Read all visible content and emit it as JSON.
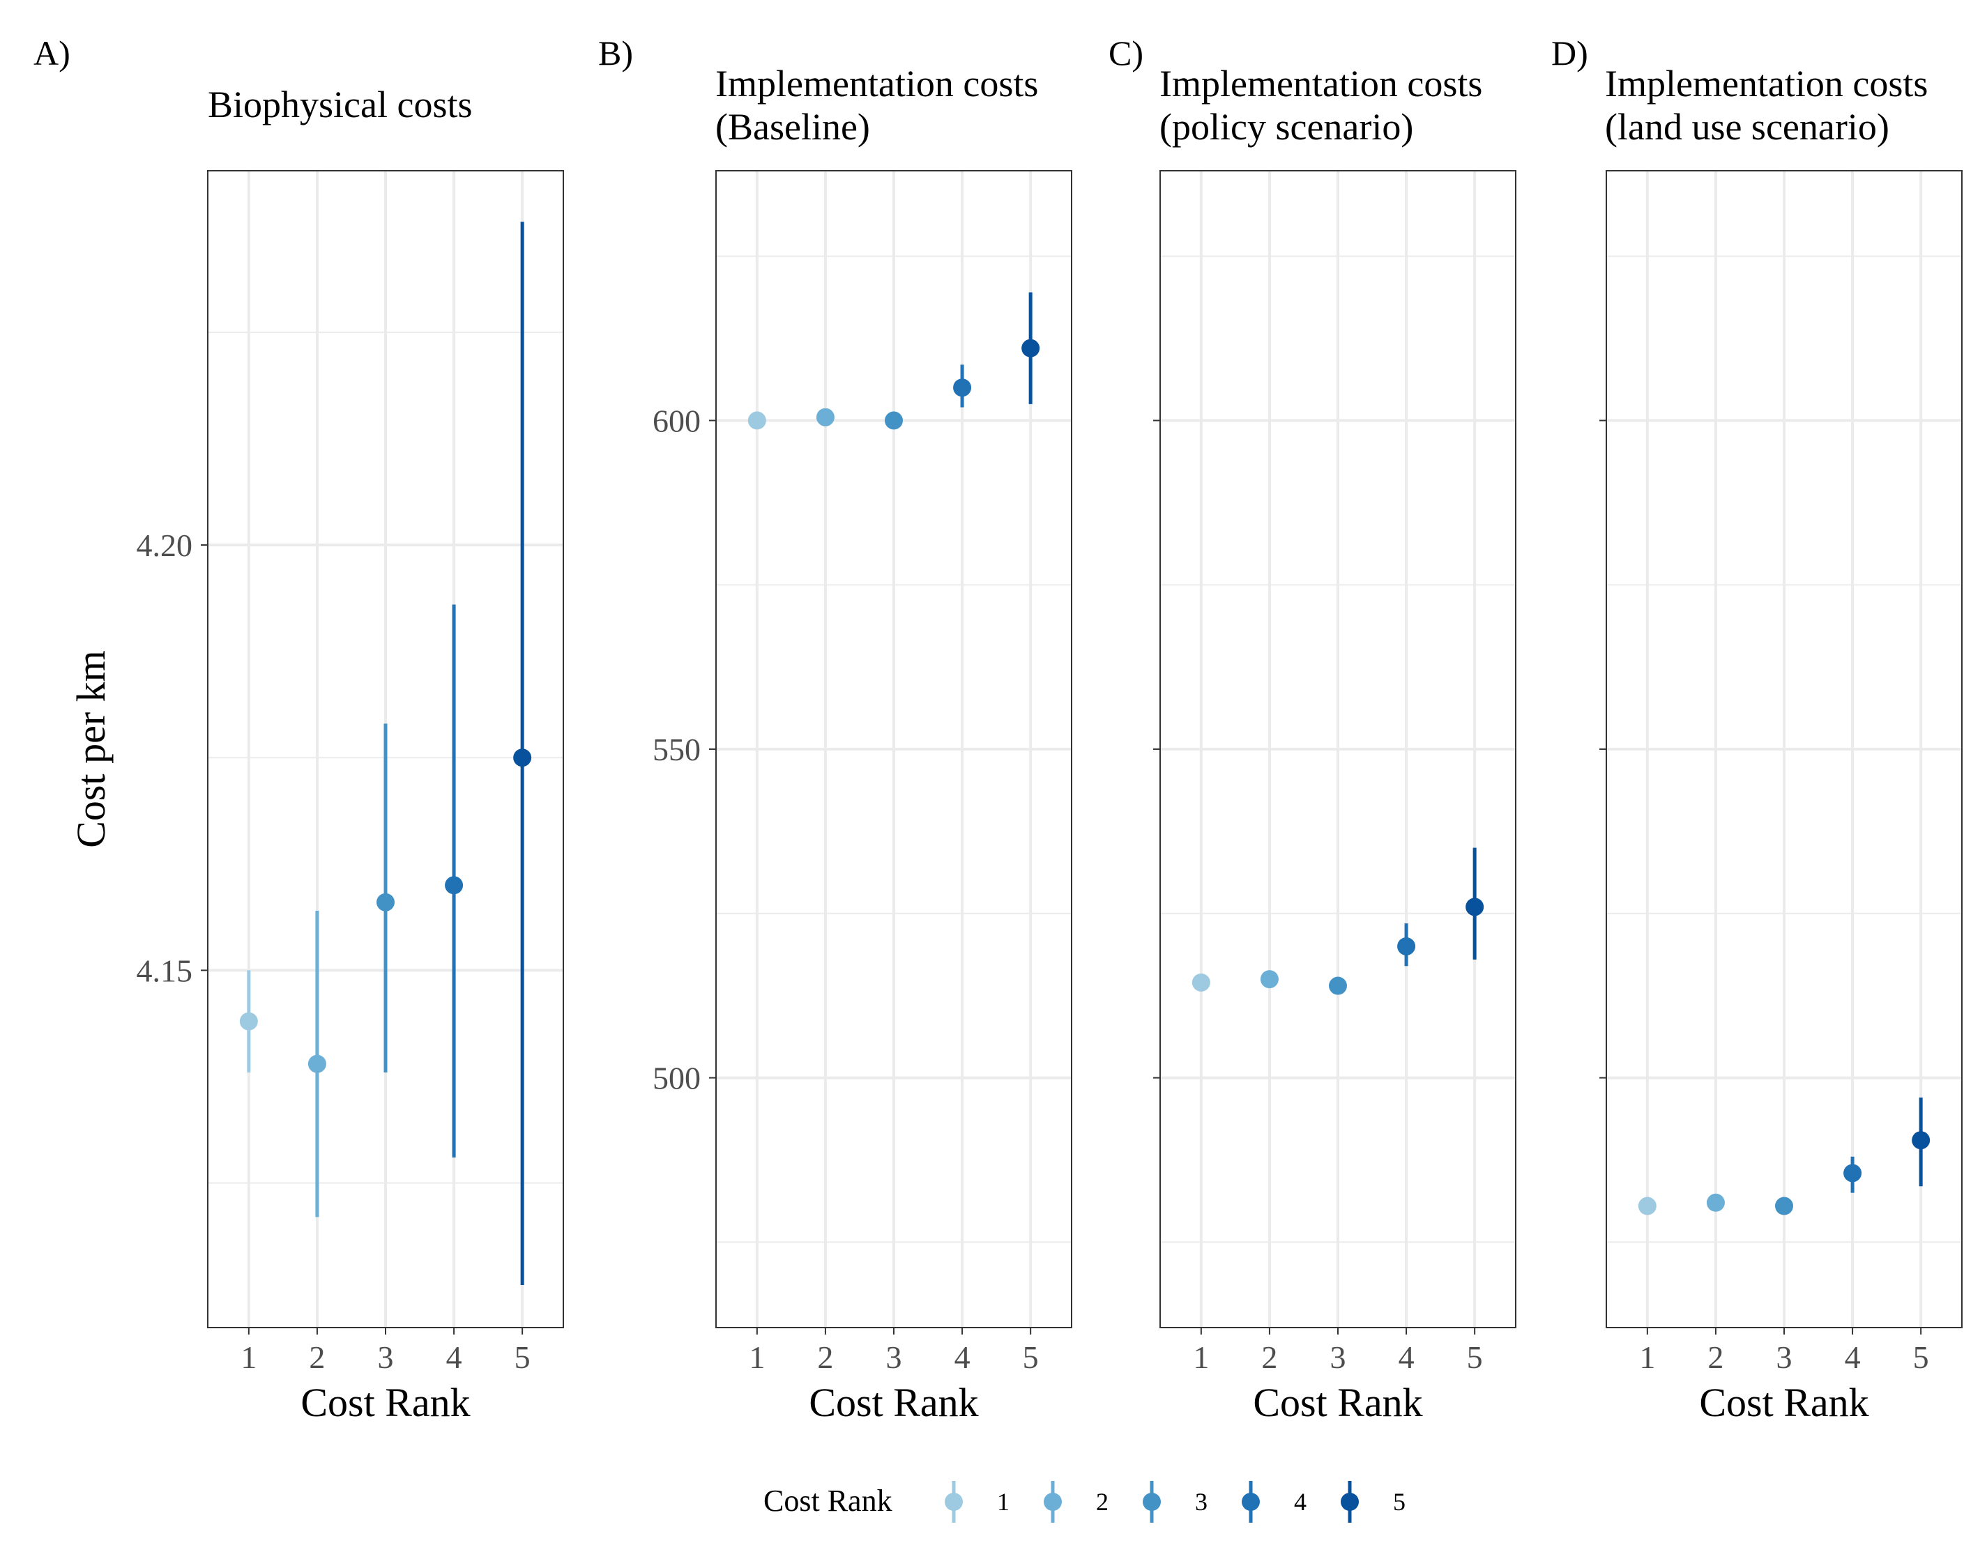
{
  "figure": {
    "ylabel": "Cost per km",
    "colors": {
      "rank_1": "#9ecae1",
      "rank_2": "#6baed6",
      "rank_3": "#4292c6",
      "rank_4": "#2171b5",
      "rank_5": "#08519c",
      "grid": "#ebebeb",
      "frame": "#333333"
    },
    "legend": {
      "title": "Cost Rank",
      "position": "bottom",
      "labels": [
        "1",
        "2",
        "3",
        "4",
        "5"
      ]
    }
  },
  "chart_data": [
    {
      "type": "scatter",
      "panel_label": "A)",
      "title": [
        "Biophysical costs"
      ],
      "xlabel": "Cost Rank",
      "categories": [
        "1",
        "2",
        "3",
        "4",
        "5"
      ],
      "values": [
        4.144,
        4.139,
        4.158,
        4.16,
        4.175
      ],
      "lower": [
        4.138,
        4.121,
        4.138,
        4.128,
        4.113
      ],
      "upper": [
        4.15,
        4.157,
        4.179,
        4.193,
        4.238
      ],
      "ylim": [
        4.108,
        4.244
      ],
      "yticks": [
        4.15,
        4.2
      ],
      "ytick_labels": [
        "4.15",
        "4.20"
      ],
      "grid": true
    },
    {
      "type": "scatter",
      "panel_label": "B)",
      "title": [
        "Implementation costs",
        " (Baseline)"
      ],
      "xlabel": "Cost Rank",
      "categories": [
        "1",
        "2",
        "3",
        "4",
        "5"
      ],
      "values": [
        600.0,
        600.5,
        600.0,
        605.0,
        611.0
      ],
      "lower": [
        600.0,
        600.5,
        600.0,
        602.0,
        602.5
      ],
      "upper": [
        600.0,
        600.5,
        600.0,
        608.5,
        619.5
      ],
      "ylim": [
        462,
        638
      ],
      "yticks": [
        500,
        550,
        600
      ],
      "ytick_labels": [
        "500",
        "550",
        "600"
      ],
      "grid": true
    },
    {
      "type": "scatter",
      "panel_label": "C)",
      "title": [
        "Implementation costs",
        "(policy scenario)"
      ],
      "xlabel": "Cost Rank",
      "categories": [
        "1",
        "2",
        "3",
        "4",
        "5"
      ],
      "values": [
        514.5,
        515.0,
        514.0,
        520.0,
        526.0
      ],
      "lower": [
        514.5,
        515.0,
        514.0,
        517.0,
        518.0
      ],
      "upper": [
        514.5,
        515.0,
        514.0,
        523.5,
        535.0
      ],
      "ylim": [
        462,
        638
      ],
      "yticks": [
        500,
        550,
        600
      ],
      "ytick_labels": [],
      "grid": true
    },
    {
      "type": "scatter",
      "panel_label": "D)",
      "title": [
        "Implementation costs",
        "(land use scenario)"
      ],
      "xlabel": "Cost Rank",
      "categories": [
        "1",
        "2",
        "3",
        "4",
        "5"
      ],
      "values": [
        480.5,
        481.0,
        480.5,
        485.5,
        490.5
      ],
      "lower": [
        480.5,
        481.0,
        480.5,
        482.5,
        483.5
      ],
      "upper": [
        480.5,
        481.0,
        480.5,
        488.0,
        497.0
      ],
      "ylim": [
        462,
        638
      ],
      "yticks": [
        500,
        550,
        600
      ],
      "ytick_labels": [],
      "grid": true
    }
  ]
}
